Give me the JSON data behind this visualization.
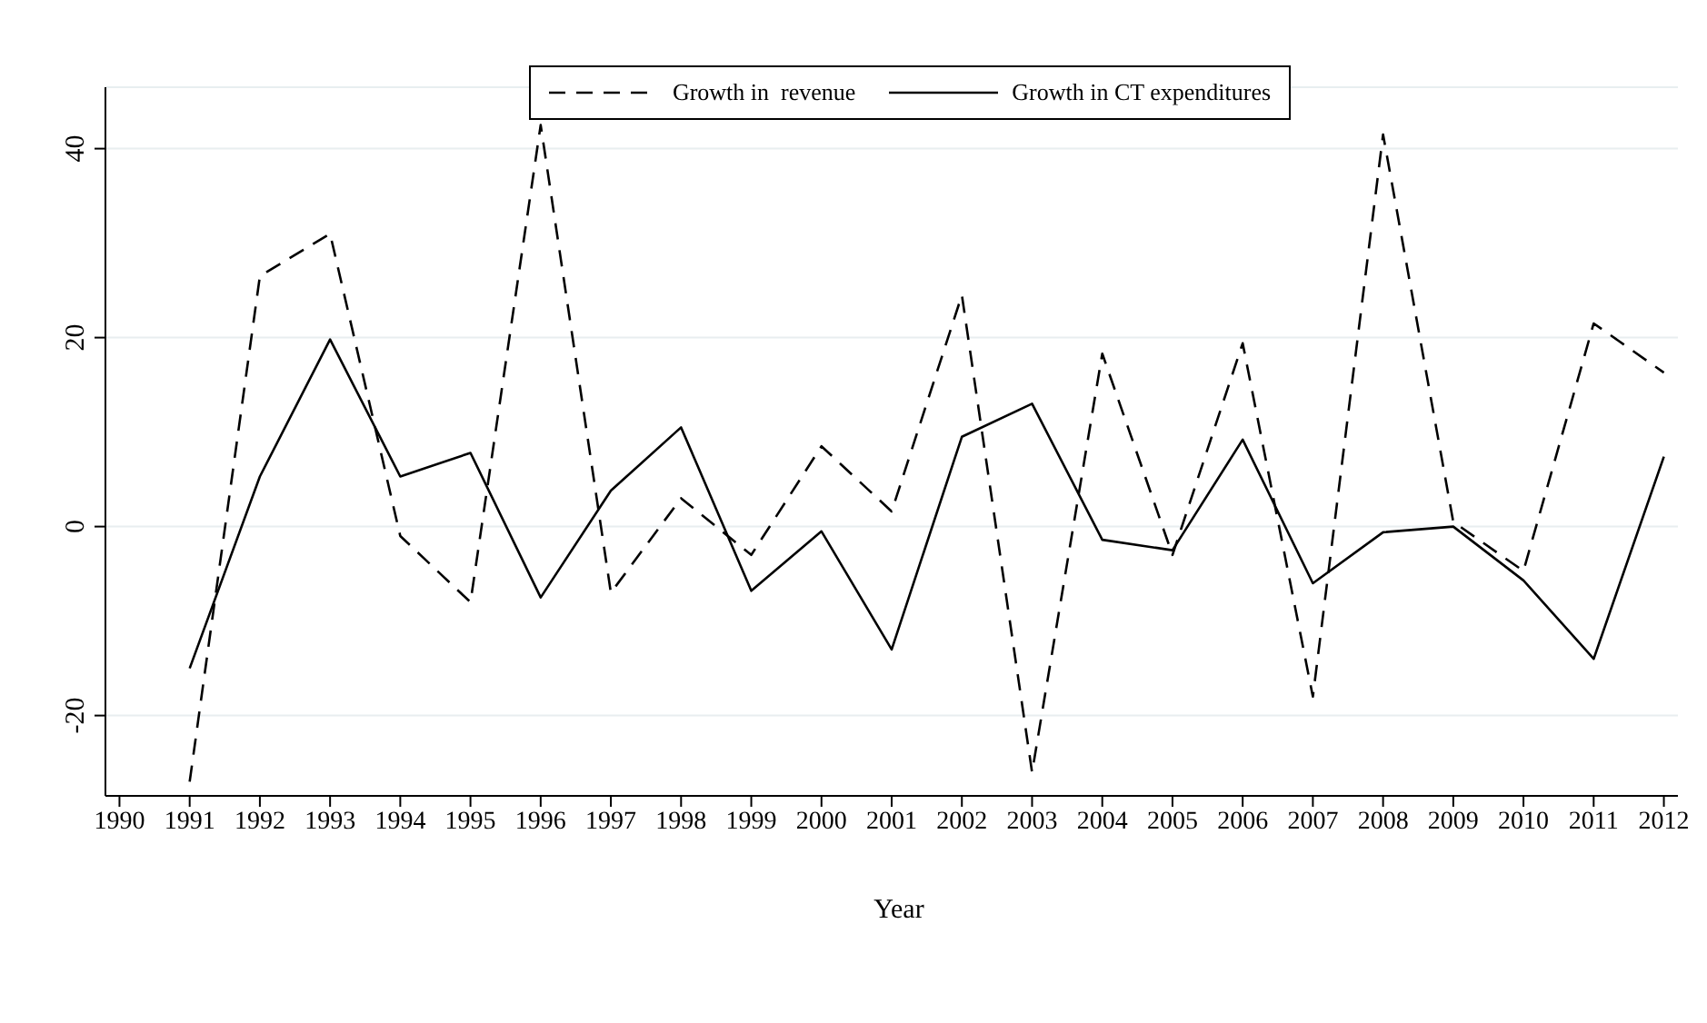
{
  "chart_data": {
    "type": "line",
    "xlabel": "Year",
    "x": [
      1991,
      1992,
      1993,
      1994,
      1995,
      1996,
      1997,
      1998,
      1999,
      2000,
      2001,
      2002,
      2003,
      2004,
      2005,
      2006,
      2007,
      2008,
      2009,
      2010,
      2011,
      2012
    ],
    "series": [
      {
        "name": "Growth in  revenue",
        "color": "#000000",
        "line_style": "dashed",
        "values": [
          -27,
          26.5,
          31,
          -1,
          -8,
          42.5,
          -7,
          3,
          -3,
          8.5,
          1.6,
          24.5,
          -26,
          18.3,
          -3,
          19.4,
          -18,
          41.5,
          0.5,
          -4.7,
          21.5,
          16.3
        ]
      },
      {
        "name": "Growth in CT expenditures",
        "color": "#000000",
        "line_style": "solid",
        "values": [
          -15,
          5.3,
          19.8,
          5.3,
          7.8,
          -7.5,
          3.8,
          10.5,
          -6.8,
          -0.5,
          -13,
          9.5,
          13,
          -1.4,
          -2.5,
          9.2,
          -6,
          -0.6,
          0,
          -5.7,
          -14,
          7.4
        ]
      }
    ],
    "xlim": [
      1989.8,
      2012.2
    ],
    "xticks": [
      1990,
      1991,
      1992,
      1993,
      1994,
      1995,
      1996,
      1997,
      1998,
      1999,
      2000,
      2001,
      2002,
      2003,
      2004,
      2005,
      2006,
      2007,
      2008,
      2009,
      2010,
      2011,
      2012
    ],
    "ylim": [
      -28.5,
      46.5
    ],
    "yticks": [
      -20,
      0,
      20,
      40
    ],
    "grid": "y",
    "legend": "top",
    "marker": "none"
  }
}
